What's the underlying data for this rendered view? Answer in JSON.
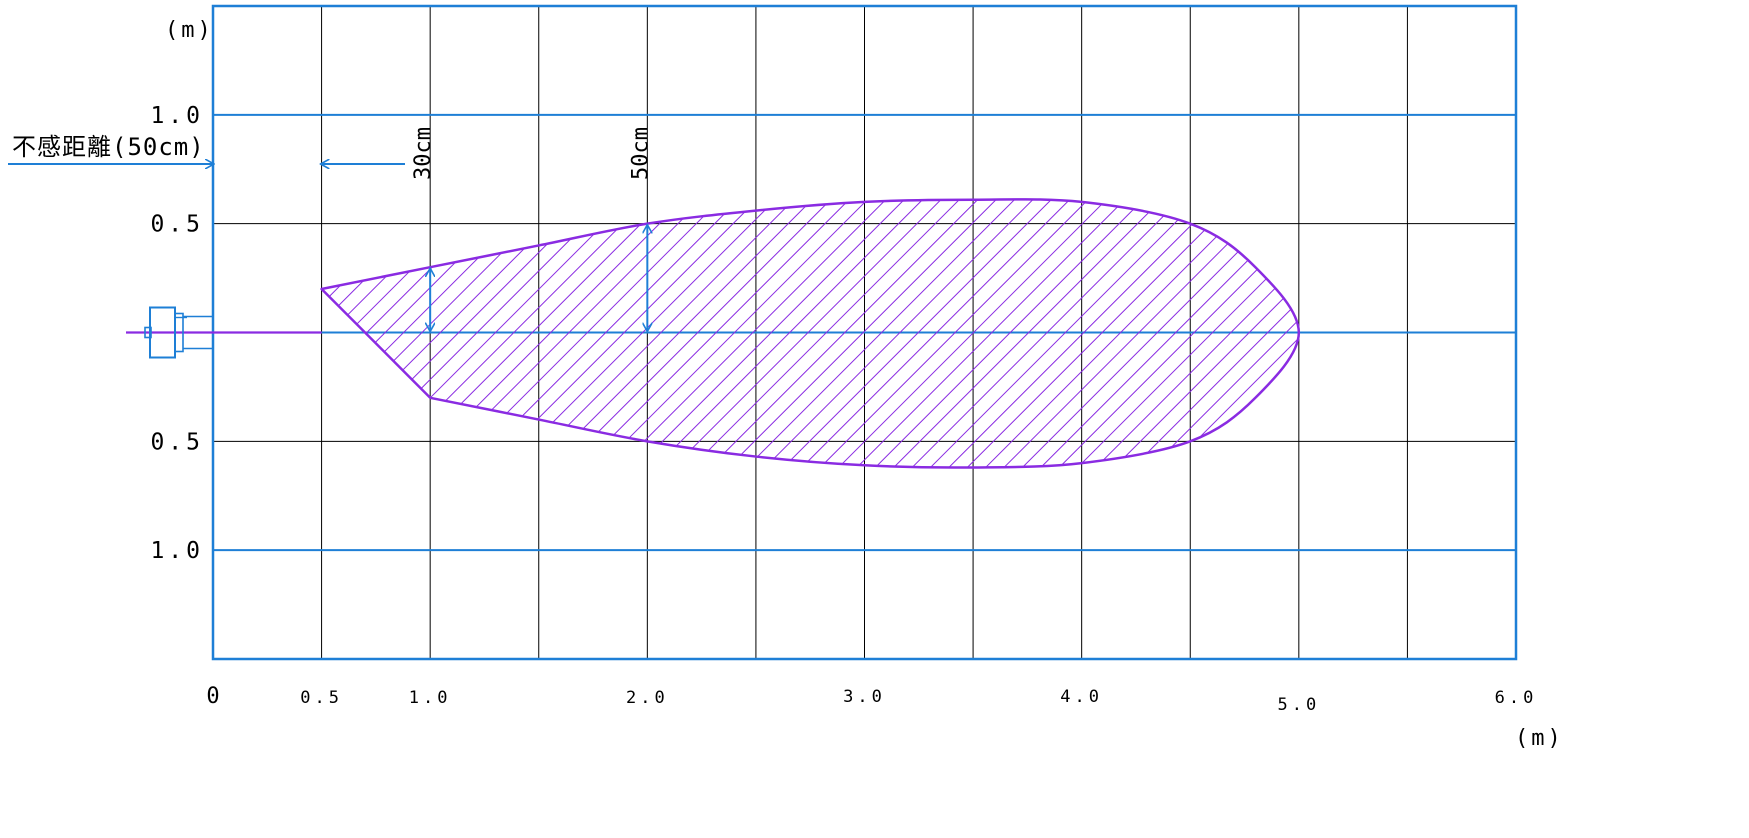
{
  "chart_data": {
    "type": "area",
    "title": "",
    "xlabel": "(m)",
    "ylabel": "(m)",
    "xlim": [
      0,
      6.0
    ],
    "ylim": [
      -1.5,
      1.5
    ],
    "grid": true,
    "x_tick_labels": [
      {
        "x": 0,
        "label": "0"
      },
      {
        "x": 0.5,
        "label": "0.5"
      },
      {
        "x": 1.0,
        "label": "1.0"
      },
      {
        "x": 2.0,
        "label": "2.0"
      },
      {
        "x": 3.0,
        "label": "3.0"
      },
      {
        "x": 4.0,
        "label": "4.0"
      },
      {
        "x": 5.0,
        "label": "5.0"
      },
      {
        "x": 6.0,
        "label": "6.0"
      }
    ],
    "y_tick_labels": [
      {
        "y": 1.0,
        "label": "1.0"
      },
      {
        "y": 0.5,
        "label": "0.5"
      },
      {
        "y": -0.5,
        "label": "0.5"
      },
      {
        "y": -1.0,
        "label": "1.0"
      }
    ],
    "series": [
      {
        "upper": [
          [
            0.5,
            0.2
          ],
          [
            1.0,
            0.3
          ],
          [
            1.5,
            0.4
          ],
          [
            2.0,
            0.5
          ],
          [
            2.5,
            0.56
          ],
          [
            3.0,
            0.6
          ],
          [
            3.5,
            0.61
          ],
          [
            4.0,
            0.6
          ],
          [
            4.5,
            0.5
          ],
          [
            4.8,
            0.3
          ],
          [
            5.0,
            0.0
          ]
        ],
        "lower": [
          [
            0.5,
            -0.2
          ],
          [
            1.0,
            -0.3
          ],
          [
            1.5,
            -0.4
          ],
          [
            2.0,
            -0.5
          ],
          [
            2.5,
            -0.57
          ],
          [
            3.0,
            -0.61
          ],
          [
            3.5,
            -0.62
          ],
          [
            4.0,
            -0.6
          ],
          [
            4.5,
            -0.5
          ],
          [
            4.8,
            -0.3
          ],
          [
            5.0,
            0.0
          ]
        ]
      }
    ],
    "annotations": {
      "dead_zone": {
        "label": "不感距離(50cm)",
        "x": 0.5
      },
      "width_marks": [
        {
          "x": 1.0,
          "from": 0,
          "to": 0.3,
          "label": "30cm"
        },
        {
          "x": 2.0,
          "from": 0,
          "to": 0.5,
          "label": "50cm"
        }
      ]
    },
    "colors": {
      "area": "#8a2be2",
      "grid_major": "#1e7fd6",
      "grid_minor": "#000000",
      "annotation": "#1e7fd6",
      "sensor": "#1e7fd6"
    }
  }
}
